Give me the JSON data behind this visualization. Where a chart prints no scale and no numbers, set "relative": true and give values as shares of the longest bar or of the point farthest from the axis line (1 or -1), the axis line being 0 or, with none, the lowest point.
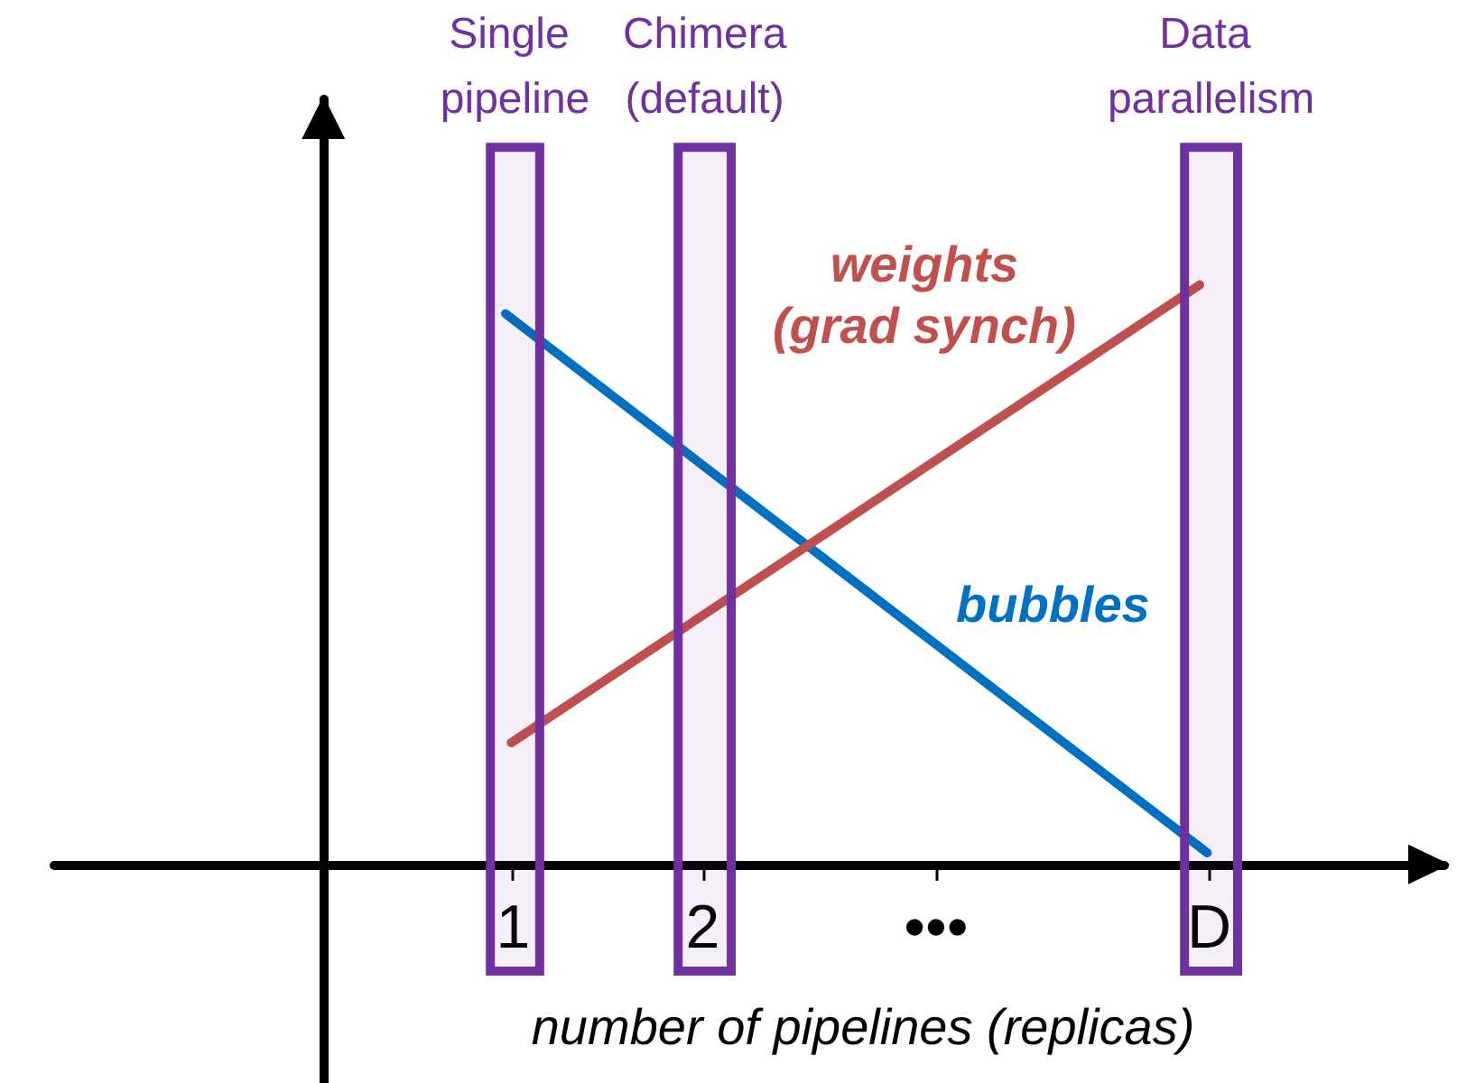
{
  "chart_data": {
    "type": "line",
    "relative": true,
    "xlabel": "number of pipelines (replicas)",
    "xlim": [
      -1.42,
      5.91
    ],
    "xticks": [
      1,
      2,
      {
        "value": 3.23,
        "label": "•••"
      },
      {
        "value": 4.67,
        "label": "D"
      }
    ],
    "series": [
      {
        "name": "bubbles",
        "color": "#0070c0",
        "x": [
          0.96,
          4.66
        ],
        "values": [
          0.95,
          0.02
        ]
      },
      {
        "name": "weights (grad synch)",
        "color": "#c0504d",
        "x": [
          0.99,
          4.62
        ],
        "values": [
          0.21,
          1
        ]
      }
    ],
    "bands": [
      {
        "axis": "x",
        "from": 0.88,
        "to": 1.14,
        "label": "Single pipeline",
        "color": "#7030a0"
      },
      {
        "axis": "x",
        "from": 1.87,
        "to": 2.15,
        "label": "Chimera (default)",
        "color": "#7030a0"
      },
      {
        "axis": "x",
        "from": 4.54,
        "to": 4.82,
        "label": "Data parallelism",
        "color": "#7030a0"
      }
    ]
  }
}
